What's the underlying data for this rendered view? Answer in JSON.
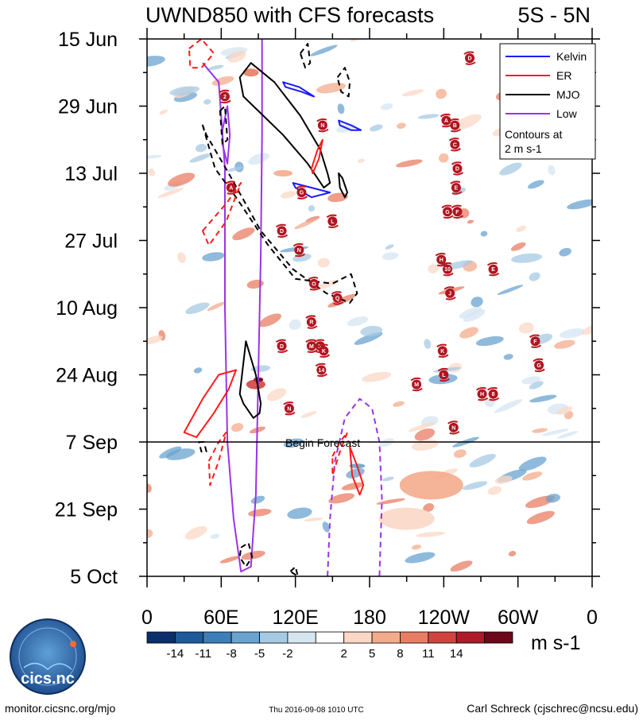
{
  "chart_data": {
    "type": "heatmap",
    "title": "UWND850 with CFS forecasts",
    "region": "5S - 5N",
    "y_ticks": [
      "15 Jun",
      "29 Jun",
      "13 Jul",
      "27 Jul",
      "10 Aug",
      "24 Aug",
      "7 Sep",
      "21 Sep",
      "5 Oct"
    ],
    "x_ticks": [
      "0",
      "60E",
      "120E",
      "180",
      "120W",
      "60W",
      "0"
    ],
    "x_range_deg_east": [
      0,
      360
    ],
    "y_range_days": [
      0,
      112
    ],
    "forecast_start_day": 84,
    "forecast_label": "Begin Forecast",
    "colorbar": {
      "units": "m s-1",
      "tick_labels": [
        "-14",
        "-11",
        "-8",
        "-5",
        "-2",
        "2",
        "5",
        "8",
        "11",
        "14"
      ],
      "colors": [
        "#0a2f6b",
        "#1d5a9a",
        "#3c7eb8",
        "#6aa3cf",
        "#a7cae3",
        "#d6e6f1",
        "#ffffff",
        "#fbd8c6",
        "#f4ab8c",
        "#e87d63",
        "#d0443f",
        "#ae1a2a",
        "#6e0619"
      ]
    },
    "legend": {
      "entries": [
        {
          "label": "Kelvin",
          "color": "#1a1aff"
        },
        {
          "label": "ER",
          "color": "#ff1a1a"
        },
        {
          "label": "MJO",
          "color": "#000000"
        },
        {
          "label": "Low",
          "color": "#9a33e6"
        }
      ],
      "note_line1": "Contours at",
      "note_line2": "2 m s-1"
    },
    "contours": [
      {
        "type": "Low",
        "style": "solid",
        "points": [
          [
            45,
            5
          ],
          [
            58,
            9
          ],
          [
            63,
            27
          ],
          [
            63,
            56
          ],
          [
            65,
            84
          ],
          [
            70,
            100
          ],
          [
            76,
            111
          ],
          [
            84,
            110
          ],
          [
            88,
            95
          ],
          [
            90,
            70
          ],
          [
            92,
            45
          ],
          [
            93,
            20
          ],
          [
            93,
            0
          ]
        ]
      },
      {
        "type": "Low",
        "style": "solid",
        "points": [
          [
            61,
            19
          ],
          [
            65,
            14
          ],
          [
            67,
            20
          ],
          [
            65,
            26
          ],
          [
            61,
            22
          ]
        ]
      },
      {
        "type": "Low",
        "style": "dashed",
        "points": [
          [
            146,
            112
          ],
          [
            148,
            100
          ],
          [
            152,
            88
          ],
          [
            160,
            79
          ],
          [
            172,
            75
          ],
          [
            182,
            77
          ],
          [
            188,
            84
          ],
          [
            190,
            96
          ],
          [
            188,
            112
          ]
        ]
      },
      {
        "type": "MJO",
        "style": "solid",
        "points": [
          [
            75,
            8
          ],
          [
            84,
            5
          ],
          [
            103,
            9
          ],
          [
            124,
            16
          ],
          [
            140,
            23
          ],
          [
            146,
            28
          ],
          [
            148,
            30
          ],
          [
            143,
            31
          ],
          [
            130,
            26
          ],
          [
            110,
            20
          ],
          [
            90,
            15
          ],
          [
            78,
            12
          ]
        ]
      },
      {
        "type": "MJO",
        "style": "solid",
        "points": [
          [
            155,
            28
          ],
          [
            158,
            29
          ],
          [
            162,
            32
          ],
          [
            160,
            33
          ],
          [
            156,
            31
          ]
        ]
      },
      {
        "type": "MJO",
        "style": "solid",
        "points": [
          [
            75,
            74
          ],
          [
            80,
            63
          ],
          [
            88,
            70
          ],
          [
            92,
            76
          ],
          [
            91,
            78
          ],
          [
            86,
            79
          ],
          [
            78,
            76
          ]
        ]
      },
      {
        "type": "MJO",
        "style": "dashed",
        "points": [
          [
            45,
            18
          ],
          [
            55,
            27
          ],
          [
            72,
            33
          ],
          [
            98,
            43
          ],
          [
            120,
            50
          ],
          [
            150,
            51
          ],
          [
            165,
            49
          ],
          [
            170,
            53
          ],
          [
            164,
            55
          ],
          [
            145,
            53
          ],
          [
            118,
            48
          ],
          [
            92,
            40
          ],
          [
            66,
            28
          ],
          [
            48,
            20
          ]
        ]
      },
      {
        "type": "MJO",
        "style": "dashed",
        "points": [
          [
            76,
            106
          ],
          [
            82,
            105
          ],
          [
            85,
            108
          ],
          [
            80,
            110
          ],
          [
            75,
            108
          ]
        ]
      },
      {
        "type": "MJO",
        "style": "dashed",
        "points": [
          [
            154,
            8
          ],
          [
            160,
            6
          ],
          [
            164,
            9
          ],
          [
            163,
            12
          ],
          [
            157,
            11
          ]
        ]
      },
      {
        "type": "MJO",
        "style": "dashed",
        "points": [
          [
            124,
            3
          ],
          [
            130,
            1
          ],
          [
            132,
            5
          ],
          [
            128,
            6
          ]
        ]
      },
      {
        "type": "MJO",
        "style": "dashed",
        "points": [
          [
            59,
            15
          ],
          [
            63,
            14
          ],
          [
            65,
            21
          ],
          [
            61,
            22
          ]
        ]
      },
      {
        "type": "MJO",
        "style": "dashed",
        "points": [
          [
            42,
            84
          ],
          [
            46,
            84
          ],
          [
            48,
            86
          ],
          [
            44,
            86
          ]
        ]
      },
      {
        "type": "MJO",
        "style": "dashed",
        "points": [
          [
            116,
            111
          ],
          [
            120,
            110
          ],
          [
            122,
            112
          ]
        ]
      },
      {
        "type": "ER",
        "style": "solid",
        "points": [
          [
            30,
            82
          ],
          [
            45,
            75
          ],
          [
            58,
            70
          ],
          [
            72,
            69
          ],
          [
            66,
            73
          ],
          [
            54,
            78
          ],
          [
            40,
            83
          ]
        ]
      },
      {
        "type": "ER",
        "style": "solid",
        "points": [
          [
            133,
            27
          ],
          [
            138,
            23
          ],
          [
            142,
            21
          ],
          [
            139,
            25
          ],
          [
            134,
            28
          ]
        ]
      },
      {
        "type": "ER",
        "style": "solid",
        "points": [
          [
            164,
            85
          ],
          [
            170,
            89
          ],
          [
            175,
            93
          ],
          [
            172,
            95
          ],
          [
            166,
            91
          ]
        ]
      },
      {
        "type": "ER",
        "style": "dashed",
        "points": [
          [
            45,
            40
          ],
          [
            65,
            34
          ],
          [
            76,
            30
          ],
          [
            64,
            38
          ],
          [
            50,
            43
          ]
        ]
      },
      {
        "type": "ER",
        "style": "dashed",
        "points": [
          [
            34,
            2
          ],
          [
            44,
            0
          ],
          [
            54,
            3
          ],
          [
            44,
            6
          ],
          [
            35,
            6
          ]
        ]
      },
      {
        "type": "ER",
        "style": "dashed",
        "points": [
          [
            50,
            88
          ],
          [
            58,
            84
          ],
          [
            64,
            82
          ],
          [
            58,
            88
          ],
          [
            51,
            93
          ]
        ]
      },
      {
        "type": "ER",
        "style": "dashed",
        "points": [
          [
            150,
            87
          ],
          [
            156,
            84
          ],
          [
            162,
            82
          ],
          [
            156,
            86
          ],
          [
            150,
            91
          ]
        ]
      },
      {
        "type": "Kelvin",
        "style": "solid",
        "points": [
          [
            110,
            9
          ],
          [
            123,
            10
          ],
          [
            135,
            12
          ],
          [
            125,
            11
          ],
          [
            112,
            10
          ]
        ]
      },
      {
        "type": "Kelvin",
        "style": "solid",
        "points": [
          [
            118,
            30
          ],
          [
            133,
            31
          ],
          [
            148,
            32
          ],
          [
            133,
            33
          ],
          [
            120,
            31
          ]
        ]
      },
      {
        "type": "Kelvin",
        "style": "solid",
        "points": [
          [
            155,
            17
          ],
          [
            165,
            18
          ],
          [
            173,
            19
          ],
          [
            165,
            19
          ],
          [
            156,
            18
          ]
        ]
      }
    ],
    "storms": [
      {
        "label": "D",
        "lon": 261,
        "day": 4
      },
      {
        "label": "2",
        "lon": 63,
        "day": 12
      },
      {
        "label": "A",
        "lon": 242,
        "day": 17
      },
      {
        "label": "B",
        "lon": 249,
        "day": 18
      },
      {
        "label": "N",
        "lon": 142,
        "day": 18
      },
      {
        "label": "C",
        "lon": 249,
        "day": 22
      },
      {
        "label": "D",
        "lon": 251,
        "day": 27
      },
      {
        "label": "E",
        "lon": 250,
        "day": 31
      },
      {
        "label": "A",
        "lon": 68,
        "day": 31
      },
      {
        "label": "G",
        "lon": 125,
        "day": 32
      },
      {
        "label": "G",
        "lon": 243,
        "day": 36
      },
      {
        "label": "F",
        "lon": 251,
        "day": 36
      },
      {
        "label": "L",
        "lon": 150,
        "day": 38
      },
      {
        "label": "D",
        "lon": 109,
        "day": 40
      },
      {
        "label": "N",
        "lon": 123,
        "day": 44
      },
      {
        "label": "H",
        "lon": 238,
        "day": 46
      },
      {
        "label": "10",
        "lon": 243,
        "day": 48
      },
      {
        "label": "E",
        "lon": 280,
        "day": 48
      },
      {
        "label": "O",
        "lon": 135,
        "day": 51
      },
      {
        "label": "J",
        "lon": 245,
        "day": 53
      },
      {
        "label": "Q",
        "lon": 154,
        "day": 54
      },
      {
        "label": "R",
        "lon": 133,
        "day": 59
      },
      {
        "label": "F",
        "lon": 314,
        "day": 63
      },
      {
        "label": "D",
        "lon": 109,
        "day": 64
      },
      {
        "label": "M",
        "lon": 133,
        "day": 64
      },
      {
        "label": "K",
        "lon": 140,
        "day": 64
      },
      {
        "label": "K",
        "lon": 143,
        "day": 65
      },
      {
        "label": "K",
        "lon": 239,
        "day": 65
      },
      {
        "label": "G",
        "lon": 317,
        "day": 68
      },
      {
        "label": "14",
        "lon": 141,
        "day": 69
      },
      {
        "label": "L",
        "lon": 240,
        "day": 70
      },
      {
        "label": "M",
        "lon": 218,
        "day": 72
      },
      {
        "label": "H",
        "lon": 271,
        "day": 74
      },
      {
        "label": "8",
        "lon": 280,
        "day": 74
      },
      {
        "label": "N",
        "lon": 115,
        "day": 77
      },
      {
        "label": "N",
        "lon": 248,
        "day": 81
      }
    ]
  },
  "footer": {
    "logo_text": "cics.nc",
    "url": "monitor.cicsnc.org/mjo",
    "timestamp": "Thu 2016-09-08 1010 UTC",
    "author": "Carl Schreck (cjschrec@ncsu.edu)"
  }
}
